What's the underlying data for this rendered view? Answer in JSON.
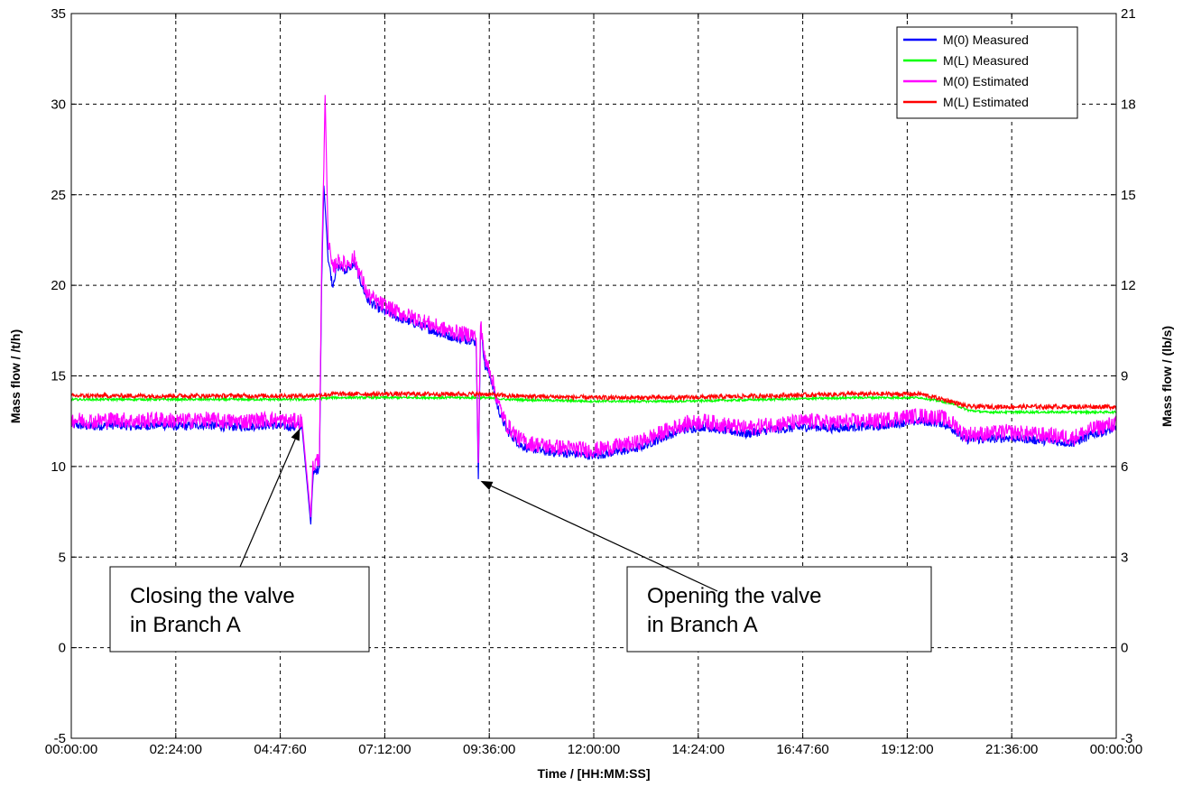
{
  "chart_data": {
    "type": "line",
    "title": "",
    "xlabel": "Time / [HH:MM:SS]",
    "ylabel": "Mass flow / /t/h)",
    "y2label": "Mass flow / (lb/s)",
    "xlim": [
      0,
      24
    ],
    "ylim": [
      -5,
      35
    ],
    "y2lim": [
      -3,
      21
    ],
    "x_ticks": [
      0,
      2.4,
      4.8,
      7.2,
      9.6,
      12,
      14.4,
      16.8,
      19.2,
      21.6,
      24
    ],
    "x_tick_labels": [
      "00:00:00",
      "02:24:00",
      "04:47:60",
      "07:12:00",
      "09:36:00",
      "12:00:00",
      "14:24:00",
      "16:47:60",
      "19:12:00",
      "21:36:00",
      "00:00:00"
    ],
    "y_ticks": [
      -5,
      0,
      5,
      10,
      15,
      20,
      25,
      30,
      35
    ],
    "y_tick_labels": [
      "-5",
      "0",
      "5",
      "10",
      "15",
      "20",
      "25",
      "30",
      "35"
    ],
    "y2_ticks": [
      -3,
      0,
      3,
      6,
      9,
      12,
      15,
      18,
      21
    ],
    "y2_tick_labels": [
      "-3",
      "0",
      "3",
      "6",
      "9",
      "12",
      "15",
      "18",
      "21"
    ],
    "grid": true,
    "legend_position": "top-right",
    "series": [
      {
        "name": "M(0) Measured",
        "color": "#0000ff",
        "noise": 0.5,
        "x": [
          0,
          0.5,
          1,
          1.5,
          2,
          2.5,
          3,
          3.5,
          4,
          4.5,
          5,
          5.3,
          5.5,
          5.55,
          5.7,
          5.75,
          5.8,
          5.9,
          6.0,
          6.1,
          6.2,
          6.3,
          6.5,
          6.8,
          7.0,
          7.5,
          8.0,
          8.5,
          9.0,
          9.2,
          9.3,
          9.35,
          9.4,
          9.45,
          9.5,
          9.6,
          9.8,
          10.0,
          10.3,
          10.5,
          11.0,
          11.5,
          12.0,
          12.5,
          13.0,
          13.5,
          14.0,
          14.5,
          15.0,
          15.5,
          16.0,
          16.5,
          17.0,
          17.5,
          18.0,
          18.5,
          19.0,
          19.5,
          20.0,
          20.3,
          20.5,
          21.0,
          21.5,
          22.0,
          22.5,
          23.0,
          23.5,
          24
        ],
        "y": [
          12.3,
          12.2,
          12.3,
          12.2,
          12.3,
          12.2,
          12.3,
          12.2,
          12.2,
          12.3,
          12.2,
          12.2,
          6.8,
          9.5,
          10.0,
          20.0,
          25.5,
          21.5,
          20.0,
          21.0,
          21.0,
          20.8,
          21.2,
          19.2,
          18.8,
          18.2,
          17.8,
          17.3,
          17.0,
          17.0,
          16.8,
          9.3,
          17.5,
          16.8,
          15.5,
          15.2,
          13.2,
          12.0,
          11.2,
          11.0,
          10.8,
          10.7,
          10.6,
          10.8,
          11.0,
          11.5,
          12.0,
          12.2,
          12.0,
          11.8,
          12.0,
          12.1,
          12.2,
          12.1,
          12.2,
          12.2,
          12.4,
          12.5,
          12.4,
          12.0,
          11.5,
          11.5,
          11.6,
          11.5,
          11.4,
          11.3,
          11.8,
          12.1
        ]
      },
      {
        "name": "M(L) Measured",
        "color": "#00ff00",
        "noise": 0.12,
        "x": [
          0,
          2,
          4,
          5.5,
          6,
          8,
          9.5,
          10,
          12,
          14,
          16,
          18,
          19.5,
          20.2,
          20.6,
          21,
          24
        ],
        "y": [
          13.7,
          13.7,
          13.7,
          13.7,
          13.8,
          13.8,
          13.8,
          13.7,
          13.6,
          13.6,
          13.7,
          13.8,
          13.8,
          13.5,
          13.1,
          13.0,
          13.0
        ]
      },
      {
        "name": "M(0) Estimated",
        "color": "#ff00ff",
        "noise": 0.9,
        "x": [
          0,
          0.5,
          1,
          1.5,
          2,
          2.5,
          3,
          3.5,
          4,
          4.5,
          5,
          5.3,
          5.5,
          5.55,
          5.7,
          5.75,
          5.8,
          5.83,
          5.9,
          6.0,
          6.1,
          6.2,
          6.3,
          6.5,
          6.8,
          7.0,
          7.5,
          8.0,
          8.5,
          9.0,
          9.2,
          9.3,
          9.35,
          9.4,
          9.45,
          9.5,
          9.6,
          9.8,
          10.0,
          10.3,
          10.5,
          11.0,
          11.5,
          12.0,
          12.5,
          13.0,
          13.5,
          14.0,
          14.5,
          15.0,
          15.5,
          16.0,
          16.5,
          17.0,
          17.5,
          18.0,
          18.5,
          19.0,
          19.5,
          20.0,
          20.3,
          20.5,
          21.0,
          21.5,
          22.0,
          22.5,
          23.0,
          23.5,
          24
        ],
        "y": [
          12.6,
          12.5,
          12.6,
          12.5,
          12.6,
          12.5,
          12.6,
          12.5,
          12.5,
          12.6,
          12.5,
          12.5,
          7.2,
          10.0,
          10.5,
          21.0,
          26.5,
          30.5,
          22.5,
          20.8,
          21.3,
          21.3,
          21.1,
          21.5,
          19.5,
          19.1,
          18.5,
          18.1,
          17.6,
          17.3,
          17.3,
          17.1,
          10.2,
          17.8,
          17.1,
          15.8,
          15.5,
          13.5,
          12.3,
          11.5,
          11.3,
          11.1,
          11.0,
          10.9,
          11.1,
          11.3,
          11.8,
          12.3,
          12.5,
          12.3,
          12.1,
          12.3,
          12.4,
          12.5,
          12.4,
          12.5,
          12.5,
          12.7,
          12.8,
          12.7,
          12.3,
          11.8,
          11.8,
          11.9,
          11.8,
          11.7,
          11.6,
          12.1,
          12.4
        ]
      },
      {
        "name": "M(L) Estimated",
        "color": "#ff0000",
        "noise": 0.25,
        "x": [
          0,
          2,
          4,
          5.5,
          6,
          8,
          9.5,
          10,
          12,
          14,
          16,
          18,
          19.5,
          20.2,
          20.6,
          21,
          24
        ],
        "y": [
          13.9,
          13.9,
          13.9,
          13.9,
          14.0,
          14.0,
          14.0,
          13.9,
          13.8,
          13.8,
          13.9,
          14.0,
          14.0,
          13.6,
          13.3,
          13.3,
          13.3
        ]
      }
    ],
    "annotations": [
      {
        "text_lines": [
          "Closing the valve",
          "in Branch A"
        ],
        "arrow_to": [
          5.25,
          12.1
        ]
      },
      {
        "text_lines": [
          "Opening the valve",
          "in Branch A"
        ],
        "arrow_to": [
          9.4,
          9.2
        ]
      }
    ]
  }
}
